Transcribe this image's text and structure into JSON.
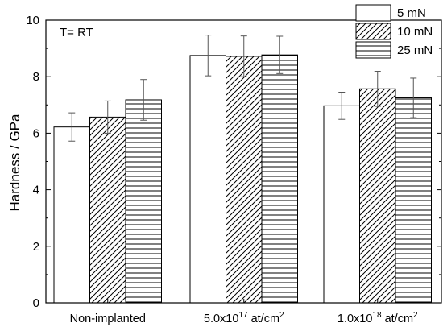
{
  "chart_data": {
    "type": "bar",
    "categories": [
      {
        "main": "Non-implanted",
        "sup": "",
        "tail": ""
      },
      {
        "main": "5.0x10",
        "sup": "17",
        "tail": " at/cm",
        "sup2": "2"
      },
      {
        "main": "1.0x10",
        "sup": "18",
        "tail": " at/cm",
        "sup2": "2"
      }
    ],
    "series": [
      {
        "name": "5 mN",
        "values": [
          6.22,
          8.75,
          6.97
        ],
        "errors": [
          0.5,
          0.72,
          0.48
        ],
        "pattern": "none"
      },
      {
        "name": "10 mN",
        "values": [
          6.57,
          8.72,
          7.57
        ],
        "errors": [
          0.57,
          0.72,
          0.62
        ],
        "pattern": "diagonal"
      },
      {
        "name": "25 mN",
        "values": [
          7.18,
          8.77,
          7.25
        ],
        "errors": [
          0.72,
          0.66,
          0.7
        ],
        "pattern": "horizontal"
      }
    ],
    "title": "",
    "annotation": "T= RT",
    "xlabel": "",
    "ylabel": "Hardness / GPa",
    "ylim": [
      0,
      10
    ],
    "yticks": [
      0,
      2,
      4,
      6,
      8,
      10
    ],
    "grid": false,
    "legend_position": "top-right"
  }
}
